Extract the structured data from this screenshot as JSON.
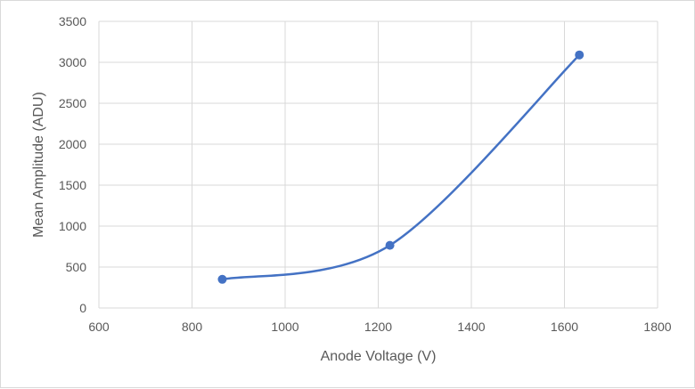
{
  "chart_data": {
    "type": "scatter",
    "title": "",
    "xlabel": "Anode Voltage (V)",
    "ylabel": "Mean Amplitude (ADU)",
    "xlim": [
      600,
      1800
    ],
    "ylim": [
      0,
      3500
    ],
    "x_ticks": [
      600,
      800,
      1000,
      1200,
      1400,
      1600,
      1800
    ],
    "y_ticks": [
      0,
      500,
      1000,
      1500,
      2000,
      2500,
      3000,
      3500
    ],
    "grid": true,
    "smooth_line": true,
    "legend": "none",
    "series": [
      {
        "x": [
          865,
          1225,
          1632
        ],
        "y": [
          350,
          765,
          3090
        ],
        "color": "#4472c4"
      }
    ],
    "colors": {
      "series": "#4472c4",
      "grid": "#d9d9d9",
      "text": "#595959"
    }
  }
}
